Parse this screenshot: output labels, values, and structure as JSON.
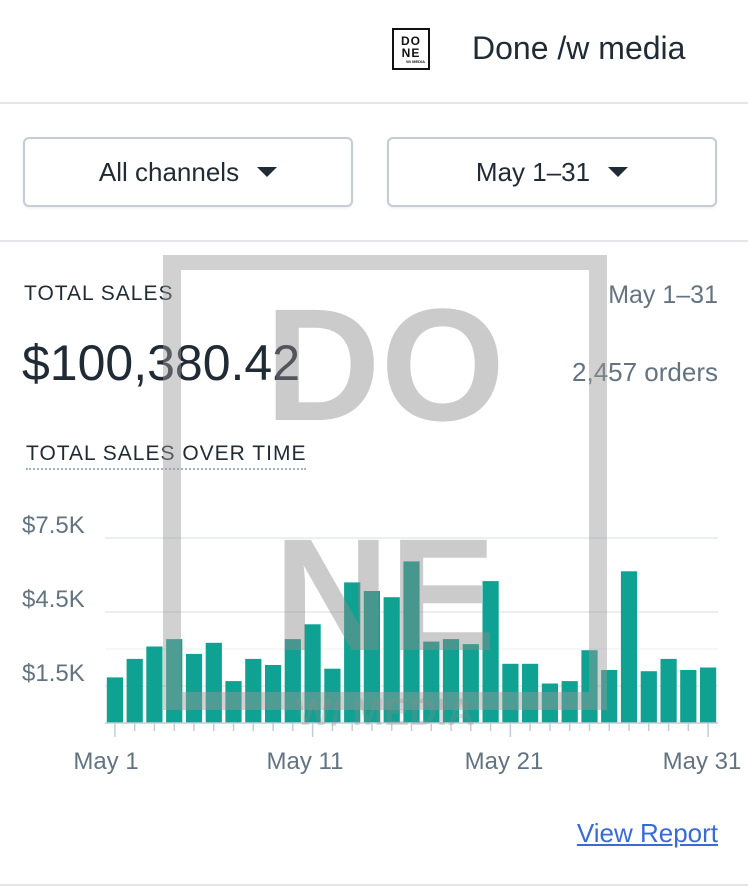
{
  "header": {
    "store_name": "Done /w media",
    "logo_text_1": "DO",
    "logo_text_2": "NE",
    "logo_small": "W/ MEDIA"
  },
  "filters": {
    "channel": "All channels",
    "date_range": "May 1–31"
  },
  "summary": {
    "label": "TOTAL SALES",
    "range": "May 1–31",
    "total": "$100,380.42",
    "orders": "2,457 orders"
  },
  "chart_title": "TOTAL SALES OVER TIME",
  "chart_data": {
    "type": "bar",
    "x": [
      1,
      2,
      3,
      4,
      5,
      6,
      7,
      8,
      9,
      10,
      11,
      12,
      13,
      14,
      15,
      16,
      17,
      18,
      19,
      20,
      21,
      22,
      23,
      24,
      25,
      26,
      27,
      28,
      29,
      30,
      31
    ],
    "values": [
      1850,
      2600,
      3100,
      3400,
      2800,
      3250,
      1700,
      2600,
      2350,
      3400,
      4000,
      2200,
      5700,
      5350,
      5100,
      6550,
      3300,
      3400,
      3200,
      5750,
      2400,
      2400,
      1600,
      1700,
      2950,
      2150,
      6150,
      2100,
      2600,
      2150,
      2250
    ],
    "ytick_labels": [
      "$7.5K",
      "$4.5K",
      "$1.5K"
    ],
    "ytick_values": [
      7500,
      4500,
      1500
    ],
    "xtick_labels": [
      "May 1",
      "May 11",
      "May 21",
      "May 31"
    ],
    "xtick_days": [
      1,
      11,
      21,
      31
    ],
    "ylim": [
      0,
      8500
    ],
    "grid": true,
    "color": "#0fa191"
  },
  "actions": {
    "view_report": "View Report"
  },
  "watermark": {
    "line1": "DO",
    "line2": "NE",
    "line3": "W/ MEDIA"
  }
}
